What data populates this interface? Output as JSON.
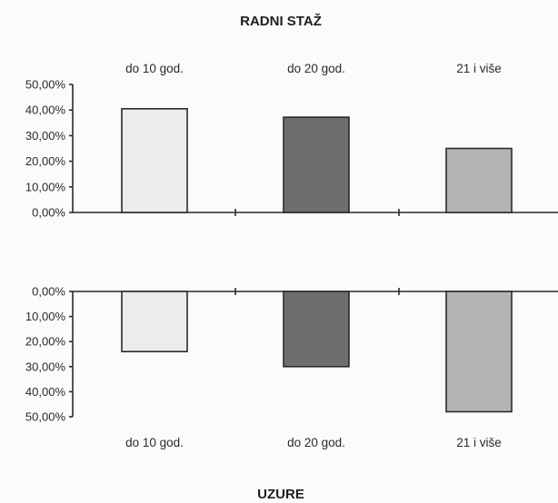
{
  "chart_data": [
    {
      "type": "bar",
      "title": "RADNI STAŽ",
      "categories": [
        "do 10 god.",
        "do 20 god.",
        "21 i više"
      ],
      "values": [
        40.5,
        37.2,
        25.0
      ],
      "ylim": [
        0,
        50
      ],
      "ytick_labels": [
        "0,00%",
        "10,00%",
        "20,00%",
        "30,00%",
        "40,00%",
        "50,00%"
      ],
      "orientation": "upward",
      "grid": false,
      "category_label_position": "top",
      "title_position": "top",
      "bar_colors": [
        "#ececea",
        "#6e6e6e",
        "#b4b4b4"
      ]
    },
    {
      "type": "bar",
      "title": "UZURE",
      "categories": [
        "do 10 god.",
        "do 20 god.",
        "21 i više"
      ],
      "values": [
        24.0,
        30.0,
        48.0
      ],
      "ylim": [
        0,
        50
      ],
      "ytick_labels": [
        "0,00%",
        "10,00%",
        "20,00%",
        "30,00%",
        "40,00%",
        "50,00%"
      ],
      "orientation": "downward",
      "grid": false,
      "category_label_position": "bottom",
      "title_position": "bottom",
      "bar_colors": [
        "#ececea",
        "#6e6e6e",
        "#b4b4b4"
      ]
    }
  ]
}
